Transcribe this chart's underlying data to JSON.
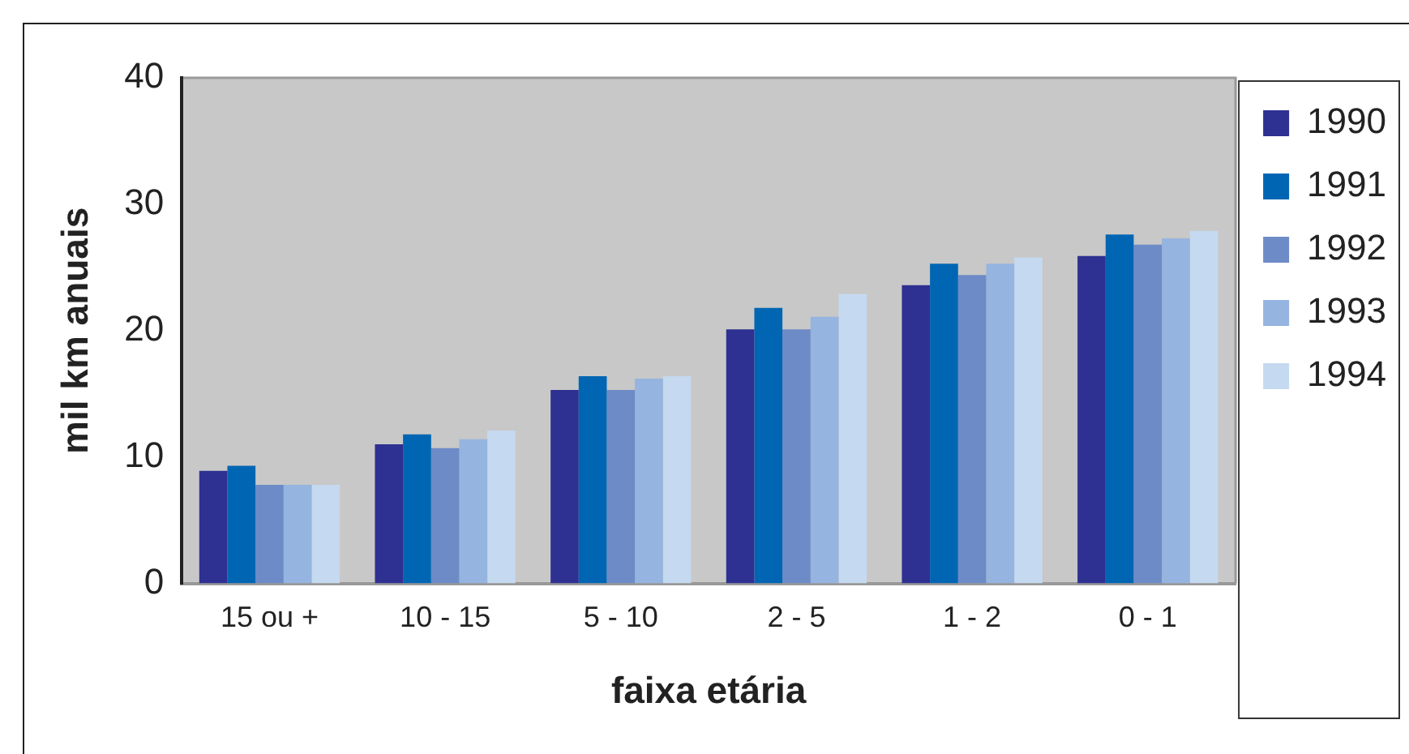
{
  "chart_data": {
    "type": "bar",
    "xlabel": "faixa etária",
    "ylabel": "mil km anuais",
    "categories": [
      "15 ou +",
      "10 - 15",
      "5 - 10",
      "2 - 5",
      "1 - 2",
      "0 - 1"
    ],
    "series": [
      {
        "name": "1990",
        "color": "#2e3092",
        "values": [
          8.9,
          11.0,
          15.3,
          20.1,
          23.6,
          25.9
        ]
      },
      {
        "name": "1991",
        "color": "#0066b3",
        "values": [
          9.3,
          11.8,
          16.4,
          21.8,
          25.3,
          27.6
        ]
      },
      {
        "name": "1992",
        "color": "#6d8bc7",
        "values": [
          7.8,
          10.7,
          15.3,
          20.1,
          24.4,
          26.8
        ]
      },
      {
        "name": "1993",
        "color": "#95b4df",
        "values": [
          7.8,
          11.4,
          16.2,
          21.1,
          25.3,
          27.3
        ]
      },
      {
        "name": "1994",
        "color": "#c5d9f0",
        "values": [
          7.8,
          12.1,
          16.4,
          22.9,
          25.8,
          27.9
        ]
      }
    ],
    "ylim": [
      0,
      40
    ],
    "yticks": [
      0,
      10,
      20,
      30,
      40
    ],
    "grid": false,
    "legend": "right"
  }
}
